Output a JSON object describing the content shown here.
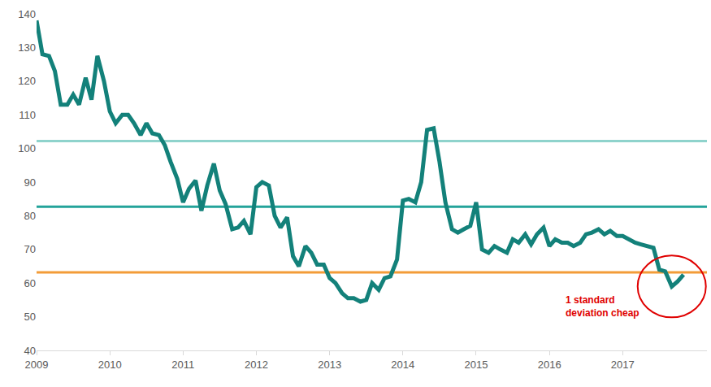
{
  "chart_data": {
    "type": "line",
    "x": [
      2009.0,
      2009.08,
      2009.17,
      2009.25,
      2009.33,
      2009.42,
      2009.5,
      2009.58,
      2009.67,
      2009.75,
      2009.83,
      2009.92,
      2010.0,
      2010.08,
      2010.17,
      2010.25,
      2010.33,
      2010.42,
      2010.5,
      2010.58,
      2010.67,
      2010.75,
      2010.83,
      2010.92,
      2011.0,
      2011.08,
      2011.17,
      2011.25,
      2011.33,
      2011.42,
      2011.5,
      2011.58,
      2011.67,
      2011.75,
      2011.83,
      2011.92,
      2012.0,
      2012.08,
      2012.17,
      2012.25,
      2012.33,
      2012.42,
      2012.5,
      2012.58,
      2012.67,
      2012.75,
      2012.83,
      2012.92,
      2013.0,
      2013.08,
      2013.17,
      2013.25,
      2013.33,
      2013.42,
      2013.5,
      2013.58,
      2013.67,
      2013.75,
      2013.83,
      2013.92,
      2014.0,
      2014.08,
      2014.17,
      2014.25,
      2014.33,
      2014.42,
      2014.5,
      2014.58,
      2014.67,
      2014.75,
      2014.83,
      2014.92,
      2015.0,
      2015.08,
      2015.17,
      2015.25,
      2015.33,
      2015.42,
      2015.5,
      2015.58,
      2015.67,
      2015.75,
      2015.83,
      2015.92,
      2016.0,
      2016.08,
      2016.17,
      2016.25,
      2016.33,
      2016.42,
      2016.5,
      2016.58,
      2016.67,
      2016.75,
      2016.83,
      2016.92,
      2017.0,
      2017.08,
      2017.17,
      2017.25,
      2017.33,
      2017.42,
      2017.5,
      2017.58,
      2017.67,
      2017.75,
      2017.83
    ],
    "values": [
      138,
      128,
      127.5,
      123,
      113,
      113,
      116,
      113,
      121,
      114.5,
      127.5,
      120,
      111,
      107.5,
      110,
      110,
      107.5,
      104,
      107.5,
      104.5,
      104,
      101,
      96,
      91,
      84,
      88,
      90.5,
      81.5,
      89,
      95.5,
      87.5,
      83.5,
      76,
      76.5,
      78.5,
      74.5,
      88.5,
      90,
      89,
      80,
      76.5,
      79.5,
      68,
      65,
      71,
      69,
      65.5,
      65.5,
      61.5,
      60,
      57,
      55.5,
      55.5,
      54.5,
      55,
      60,
      58,
      61.5,
      62,
      67,
      84.5,
      85,
      84,
      90,
      105.5,
      106,
      96,
      84,
      76,
      75,
      76,
      77,
      84,
      70,
      69,
      71,
      70,
      69,
      73,
      72,
      74.5,
      71.5,
      74.5,
      76.5,
      71,
      73,
      72,
      72,
      71,
      72,
      74.5,
      75,
      76,
      74.5,
      75.5,
      74,
      74,
      73,
      72,
      71.5,
      71,
      70.5,
      64,
      63.5,
      59,
      60.5,
      62.5
    ],
    "color": "#13817a",
    "xlim": [
      2009,
      2018.15
    ],
    "xticks": [
      2009,
      2010,
      2011,
      2012,
      2013,
      2014,
      2015,
      2016,
      2017
    ],
    "ylim": [
      40,
      140
    ],
    "yticks": [
      40,
      50,
      60,
      70,
      80,
      90,
      100,
      110,
      120,
      130,
      140
    ],
    "grid": false,
    "hlines": [
      {
        "value": 102.2,
        "color": "#8fd3cc"
      },
      {
        "value": 82.7,
        "color": "#23a39a"
      },
      {
        "value": 63.2,
        "color": "#f39c38"
      }
    ],
    "annotation": {
      "text": "1 standard\ndeviation cheap",
      "x": 2016.2,
      "y": 53,
      "color": "#e00000"
    }
  }
}
